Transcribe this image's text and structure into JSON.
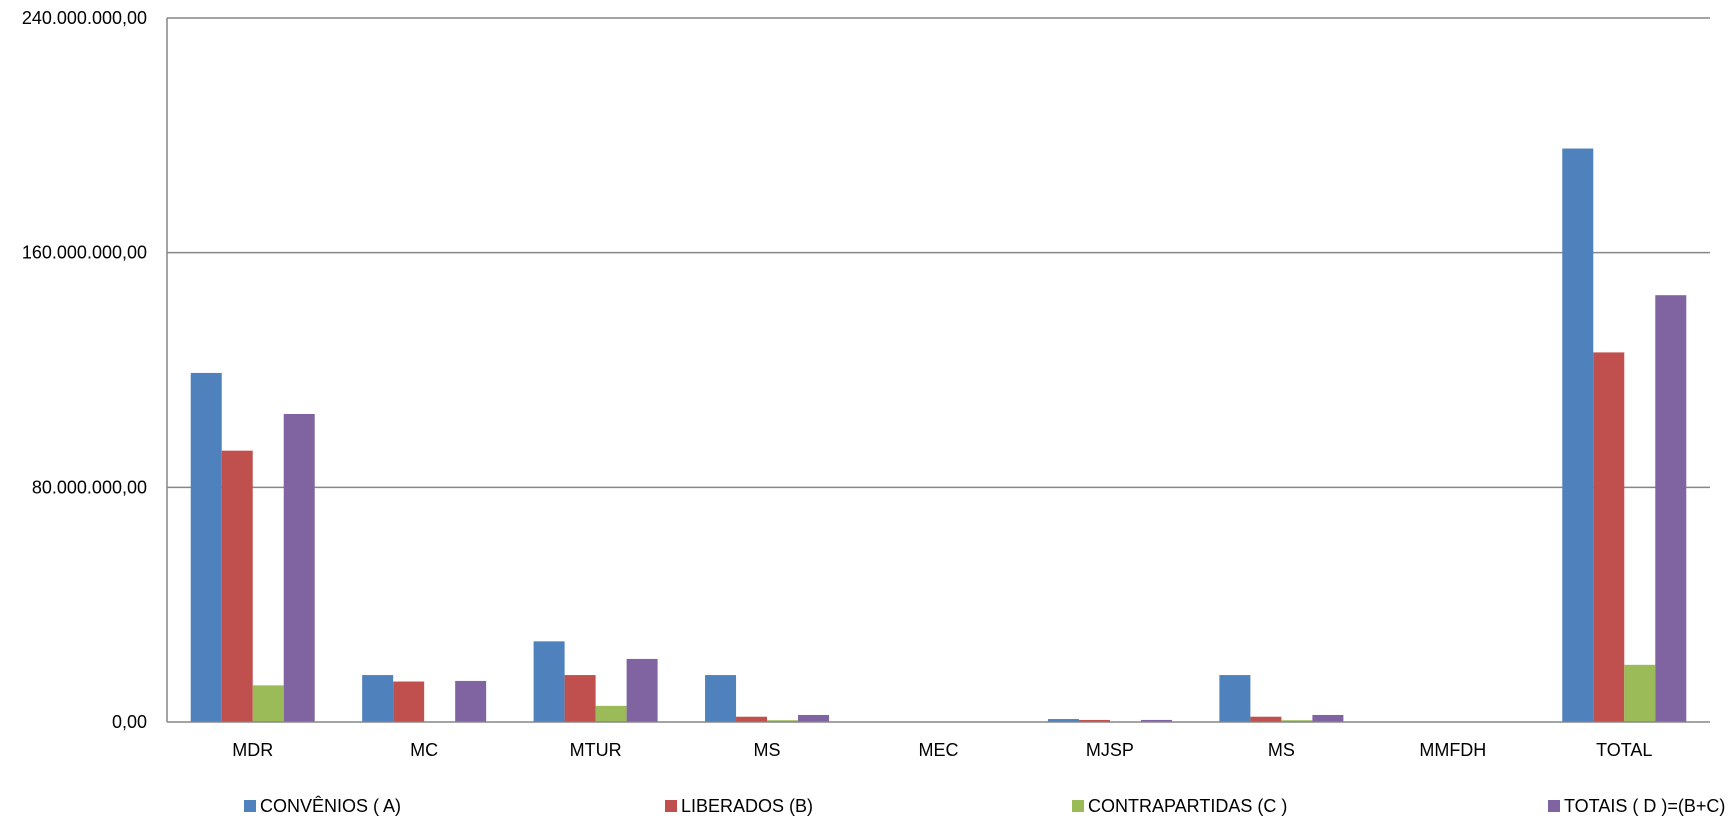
{
  "chart_data": {
    "type": "bar",
    "title": "",
    "xlabel": "",
    "ylabel": "",
    "ylim": [
      0,
      240000000
    ],
    "yticks": [
      0,
      80000000,
      160000000,
      240000000
    ],
    "ytick_labels": [
      "0,00",
      "80.000.000,00",
      "160.000.000,00",
      "240.000.000,00"
    ],
    "grid": true,
    "legend_position": "bottom",
    "categories": [
      "MDR",
      "MC",
      "MTUR",
      "MS",
      "MEC",
      "MJSP",
      "MS",
      "MMFDH",
      "TOTAL"
    ],
    "series": [
      {
        "name": "CONVÊNIOS ( A)",
        "color": "#4F81BD",
        "values": [
          119000000,
          16000000,
          27500000,
          16000000,
          0,
          1000000,
          16000000,
          0,
          195500000
        ]
      },
      {
        "name": "LIBERADOS (B)",
        "color": "#C0504D",
        "values": [
          92500000,
          13800000,
          16000000,
          1800000,
          0,
          700000,
          1800000,
          0,
          126000000
        ]
      },
      {
        "name": "CONTRAPARTIDAS (C )",
        "color": "#9BBB59",
        "values": [
          12500000,
          0,
          5500000,
          600000,
          0,
          0,
          600000,
          0,
          19500000
        ]
      },
      {
        "name": "TOTAIS ( D )=(B+C)",
        "color": "#8064A2",
        "values": [
          105000000,
          14000000,
          21500000,
          2400000,
          0,
          700000,
          2400000,
          0,
          145500000
        ]
      }
    ]
  }
}
